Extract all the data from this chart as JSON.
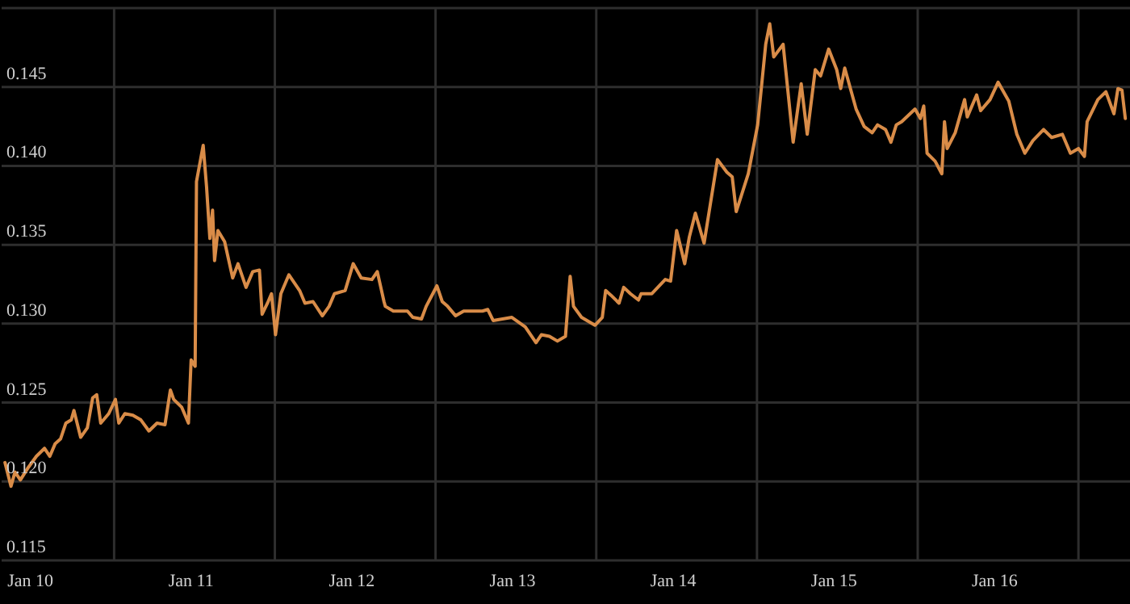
{
  "chart_data": {
    "type": "line",
    "x": [
      "--01-09T20:12",
      "--01-09T21:06",
      "--01-09T21:42",
      "--01-09T22:30",
      "--01-09T23:42",
      "--01-10T00:54",
      "--01-10T02:06",
      "--01-10T02:54",
      "--01-10T03:42",
      "--01-10T04:30",
      "--01-10T05:18",
      "--01-10T06:06",
      "--01-10T06:30",
      "--01-10T07:30",
      "--01-10T08:30",
      "--01-10T09:18",
      "--01-10T09:54",
      "--01-10T10:30",
      "--01-10T11:42",
      "--01-10T12:42",
      "--01-10T13:12",
      "--01-10T14:06",
      "--01-10T15:18",
      "--01-10T16:30",
      "--01-10T17:42",
      "--01-10T18:54",
      "--01-10T20:06",
      "--01-10T20:54",
      "--01-10T21:24",
      "--01-10T22:36",
      "--01-10T23:36",
      "--01-11T00:00",
      "--01-11T00:36",
      "--01-11T00:48",
      "--01-11T01:48",
      "--01-11T02:18",
      "--01-11T02:48",
      "--01-11T03:12",
      "--01-11T03:30",
      "--01-11T04:00",
      "--01-11T05:00",
      "--01-11T06:12",
      "--01-11T07:00",
      "--01-11T08:12",
      "--01-11T09:12",
      "--01-11T10:12",
      "--01-11T10:36",
      "--01-11T11:24",
      "--01-11T12:00",
      "--01-11T12:36",
      "--01-11T13:24",
      "--01-11T14:36",
      "--01-11T15:24",
      "--01-11T16:12",
      "--01-11T17:00",
      "--01-11T18:12",
      "--01-11T19:36",
      "--01-11T20:36",
      "--01-11T21:24",
      "--01-11T23:00",
      "--01-12T00:12",
      "--01-12T01:24",
      "--01-12T03:00",
      "--01-12T03:48",
      "--01-12T04:48",
      "--01-12T05:00",
      "--01-12T06:12",
      "--01-12T08:18",
      "--01-12T09:06",
      "--01-12T10:24",
      "--01-12T11:06",
      "--01-12T12:42",
      "--01-12T13:30",
      "--01-12T14:18",
      "--01-12T15:30",
      "--01-12T16:42",
      "--01-12T19:30",
      "--01-12T20:18",
      "--01-12T21:06",
      "--01-12T23:54",
      "--01-13T01:54",
      "--01-13T03:30",
      "--01-13T04:18",
      "--01-13T05:30",
      "--01-13T06:42",
      "--01-13T07:54",
      "--01-13T08:36",
      "--01-13T09:06",
      "--01-13T10:18",
      "--01-13T12:18",
      "--01-13T13:24",
      "--01-13T13:54",
      "--01-13T14:42",
      "--01-13T15:54",
      "--01-13T16:36",
      "--01-13T17:36",
      "--01-13T18:48",
      "--01-13T19:12",
      "--01-13T20:48",
      "--01-13T22:48",
      "--01-13T23:36",
      "--01-14T00:30",
      "--01-14T01:42",
      "--01-14T02:24",
      "--01-14T03:18",
      "--01-14T04:36",
      "--01-14T06:36",
      "--01-14T08:00",
      "--01-14T08:48",
      "--01-14T09:24",
      "--01-14T11:12",
      "--01-14T12:36",
      "--01-14T13:48",
      "--01-14T14:24",
      "--01-14T15:00",
      "--01-14T16:24",
      "--01-14T17:54",
      "--01-14T19:06",
      "--01-14T20:00",
      "--01-14T21:12",
      "--01-14T22:00",
      "--01-14T23:12",
      "--01-15T00:24",
      "--01-15T01:00",
      "--01-15T01:36",
      "--01-15T03:18",
      "--01-15T04:30",
      "--01-15T05:42",
      "--01-15T06:30",
      "--01-15T07:42",
      "--01-15T08:30",
      "--01-15T09:18",
      "--01-15T10:06",
      "--01-15T12:06",
      "--01-15T12:54",
      "--01-15T13:24",
      "--01-15T13:54",
      "--01-15T15:06",
      "--01-15T16:06",
      "--01-15T16:30",
      "--01-15T16:54",
      "--01-15T18:06",
      "--01-15T19:30",
      "--01-15T19:54",
      "--01-15T21:18",
      "--01-15T21:54",
      "--01-15T23:18",
      "--01-16T00:30",
      "--01-16T02:06",
      "--01-16T03:18",
      "--01-16T04:30",
      "--01-16T05:42",
      "--01-16T07:18",
      "--01-16T08:30",
      "--01-16T10:06",
      "--01-16T11:18",
      "--01-16T12:30",
      "--01-16T13:24",
      "--01-16T13:48",
      "--01-16T15:24",
      "--01-16T16:36",
      "--01-16T17:48",
      "--01-16T18:24",
      "--01-16T19:00",
      "--01-16T19:30"
    ],
    "series": [
      {
        "color": "#d98c48",
        "values": [
          0.1212,
          0.1197,
          0.1206,
          0.1201,
          0.1209,
          0.1216,
          0.1221,
          0.1216,
          0.1224,
          0.1227,
          0.1237,
          0.1239,
          0.1245,
          0.1228,
          0.1234,
          0.1253,
          0.1255,
          0.1237,
          0.1243,
          0.1252,
          0.1237,
          0.1243,
          0.1242,
          0.1239,
          0.1232,
          0.1237,
          0.1236,
          0.1258,
          0.1252,
          0.1247,
          0.1237,
          0.1277,
          0.1273,
          0.139,
          0.1413,
          0.1387,
          0.1354,
          0.1372,
          0.134,
          0.1359,
          0.1352,
          0.1329,
          0.1338,
          0.1323,
          0.1333,
          0.1334,
          0.1306,
          0.1313,
          0.1319,
          0.1293,
          0.1319,
          0.1331,
          0.1326,
          0.1321,
          0.1313,
          0.1314,
          0.1305,
          0.1311,
          0.1319,
          0.1321,
          0.1338,
          0.1329,
          0.1328,
          0.1333,
          0.1314,
          0.1311,
          0.1308,
          0.1308,
          0.1304,
          0.1303,
          0.1311,
          0.1324,
          0.1314,
          0.1311,
          0.1305,
          0.1308,
          0.1308,
          0.1309,
          0.1302,
          0.1304,
          0.1298,
          0.1288,
          0.1293,
          0.1292,
          0.1289,
          0.1292,
          0.133,
          0.1311,
          0.1304,
          0.1299,
          0.1304,
          0.1321,
          0.1318,
          0.1313,
          0.1323,
          0.1319,
          0.1315,
          0.1319,
          0.1319,
          0.1328,
          0.1327,
          0.1359,
          0.1338,
          0.1355,
          0.137,
          0.1351,
          0.1404,
          0.1396,
          0.1393,
          0.1371,
          0.1395,
          0.1426,
          0.1477,
          0.149,
          0.1469,
          0.1477,
          0.1415,
          0.1452,
          0.142,
          0.1461,
          0.1457,
          0.1474,
          0.1461,
          0.1449,
          0.1462,
          0.1436,
          0.1425,
          0.1421,
          0.1426,
          0.1423,
          0.1415,
          0.1426,
          0.1428,
          0.1436,
          0.143,
          0.1438,
          0.1408,
          0.1403,
          0.1395,
          0.1428,
          0.1411,
          0.1421,
          0.1442,
          0.1431,
          0.1445,
          0.1435,
          0.1442,
          0.1453,
          0.1441,
          0.142,
          0.1408,
          0.1416,
          0.1423,
          0.1418,
          0.142,
          0.1408,
          0.1411,
          0.1406,
          0.1428,
          0.1442,
          0.1447,
          0.1433,
          0.1449,
          0.1448,
          0.143
        ]
      }
    ],
    "xlim": [
      "--01-09T19:42",
      "--01-16T20:12"
    ],
    "xticks": [
      {
        "value": "--01-10",
        "label": "Jan 10"
      },
      {
        "value": "--01-11",
        "label": "Jan 11"
      },
      {
        "value": "--01-12",
        "label": "Jan 12"
      },
      {
        "value": "--01-13",
        "label": "Jan 13"
      },
      {
        "value": "--01-14",
        "label": "Jan 14"
      },
      {
        "value": "--01-15",
        "label": "Jan 15"
      },
      {
        "value": "--01-16",
        "label": "Jan 16"
      }
    ],
    "ylim": [
      0.115,
      0.15
    ],
    "yticks": [
      0.115,
      {
        "value": 0.12,
        "label": "0.120"
      },
      0.125,
      {
        "value": 0.13,
        "label": "0.130"
      },
      0.135,
      {
        "value": 0.14,
        "label": "0.140"
      },
      0.145,
      {
        "value": 0.15,
        "label": null
      }
    ],
    "grid": "y",
    "ref_lines": [
      {
        "axis": "x",
        "value": "--01-10T12:30",
        "color": "#2e2e2e"
      },
      {
        "axis": "x",
        "value": "--01-11T12:30",
        "color": "#2e2e2e"
      },
      {
        "axis": "x",
        "value": "--01-12T12:30",
        "color": "#2e2e2e"
      },
      {
        "axis": "x",
        "value": "--01-13T12:30",
        "color": "#2e2e2e"
      },
      {
        "axis": "x",
        "value": "--01-14T12:30",
        "color": "#2e2e2e"
      },
      {
        "axis": "x",
        "value": "--01-15T12:30",
        "color": "#2e2e2e"
      },
      {
        "axis": "x",
        "value": "--01-16T12:30",
        "color": "#2e2e2e"
      }
    ],
    "marker": "none",
    "line_style": "solid",
    "legend": false
  }
}
